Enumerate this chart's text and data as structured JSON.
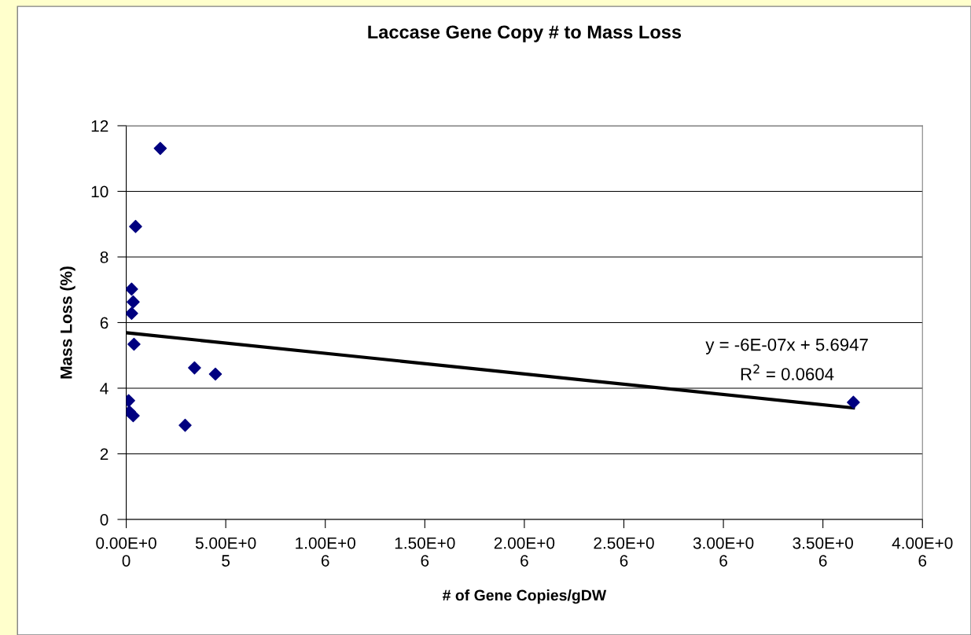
{
  "chart_data": {
    "type": "scatter",
    "title": "Laccase Gene Copy # to Mass Loss",
    "xlabel": "# of Gene Copies/gDW",
    "ylabel": "Mass Loss (%)",
    "series": [
      {
        "color": "#000080",
        "marker": "diamond",
        "x": [
          12000,
          16000,
          35000,
          27000,
          35000,
          27000,
          39000,
          47000,
          171000,
          296000,
          343000,
          448000,
          3653000
        ],
        "values": [
          3.62,
          3.28,
          3.16,
          7.02,
          6.63,
          6.28,
          5.34,
          8.93,
          11.31,
          2.87,
          4.62,
          4.43,
          3.57
        ]
      },
      {
        "type": "line",
        "color": "#000000",
        "line_style": "solid",
        "x": [
          0,
          3653000
        ],
        "values": [
          5.69,
          3.4
        ]
      }
    ],
    "xlim": [
      0,
      4000000
    ],
    "ylim": [
      0,
      12
    ],
    "xticks": [
      {
        "value": 0,
        "label": "0.00E+00"
      },
      {
        "value": 500000,
        "label": "5.00E+05"
      },
      {
        "value": 1000000,
        "label": "1.00E+06"
      },
      {
        "value": 1500000,
        "label": "1.50E+06"
      },
      {
        "value": 2000000,
        "label": "2.00E+06"
      },
      {
        "value": 2500000,
        "label": "2.50E+06"
      },
      {
        "value": 3000000,
        "label": "3.00E+06"
      },
      {
        "value": 3500000,
        "label": "3.50E+06"
      },
      {
        "value": 4000000,
        "label": "4.00E+06"
      }
    ],
    "yticks": [
      0,
      2,
      4,
      6,
      8,
      10,
      12
    ],
    "grid": "y",
    "legend": false,
    "annotations": [
      "y = -6E-07x + 5.6947",
      "R$^{2}$ = 0.0604"
    ]
  }
}
